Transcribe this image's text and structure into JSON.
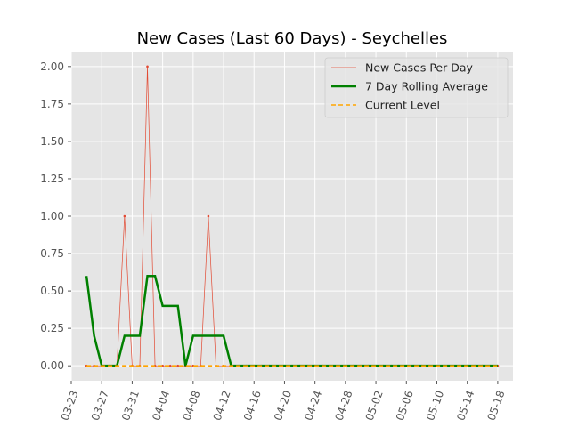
{
  "chart_data": {
    "type": "line",
    "title": "New Cases (Last 60 Days) - Seychelles",
    "xlabel": "",
    "ylabel": "",
    "x_start_date": "2020-03-25",
    "x_tick_labels": [
      "03-23",
      "03-27",
      "03-31",
      "04-04",
      "04-08",
      "04-12",
      "04-16",
      "04-20",
      "04-24",
      "04-28",
      "05-02",
      "05-06",
      "05-10",
      "05-14",
      "05-18"
    ],
    "y_tick_labels": [
      "0.00",
      "0.25",
      "0.50",
      "0.75",
      "1.00",
      "1.25",
      "1.50",
      "1.75",
      "2.00"
    ],
    "y_ticks": [
      0,
      0.25,
      0.5,
      0.75,
      1.0,
      1.25,
      1.5,
      1.75,
      2.0
    ],
    "ylim": [
      -0.1,
      2.1
    ],
    "xlim_days": [
      -2,
      56
    ],
    "grid": true,
    "legend_position": "top-right",
    "series": [
      {
        "name": "New Cases Per Day",
        "color": "#e24a33",
        "style": "thin-line-markers",
        "x_days": [
          0,
          1,
          2,
          3,
          4,
          5,
          6,
          7,
          8,
          9,
          10,
          11,
          12,
          13,
          14,
          15,
          16,
          17,
          18,
          19,
          20,
          21,
          22,
          23,
          24,
          25,
          26,
          27,
          28,
          29,
          30,
          31,
          32,
          33,
          34,
          35,
          36,
          37,
          38,
          39,
          40,
          41,
          42,
          43,
          44,
          45,
          46,
          47,
          48,
          49,
          50,
          51,
          52,
          53,
          54
        ],
        "values": [
          0,
          0,
          0,
          0,
          0,
          1,
          0,
          0,
          2,
          0,
          0,
          0,
          0,
          0,
          0,
          0,
          1,
          0,
          0,
          0,
          0,
          0,
          0,
          0,
          0,
          0,
          0,
          0,
          0,
          0,
          0,
          0,
          0,
          0,
          0,
          0,
          0,
          0,
          0,
          0,
          0,
          0,
          0,
          0,
          0,
          0,
          0,
          0,
          0,
          0,
          0,
          0,
          0,
          0,
          0
        ]
      },
      {
        "name": "7 Day Rolling Average",
        "color": "#008000",
        "style": "thick-line",
        "x_days": [
          0,
          1,
          2,
          3,
          4,
          5,
          6,
          7,
          8,
          9,
          10,
          11,
          12,
          13,
          14,
          15,
          16,
          17,
          18,
          19,
          20,
          21,
          22,
          23,
          24,
          25,
          26,
          27,
          28,
          29,
          30,
          31,
          32,
          33,
          34,
          35,
          36,
          37,
          38,
          39,
          40,
          41,
          42,
          43,
          44,
          45,
          46,
          47,
          48,
          49,
          50,
          51,
          52,
          53,
          54
        ],
        "values": [
          0.6,
          0.2,
          0,
          0,
          0,
          0.2,
          0.2,
          0.2,
          0.6,
          0.6,
          0.4,
          0.4,
          0.4,
          0,
          0.2,
          0.2,
          0.2,
          0.2,
          0.2,
          0,
          0,
          0,
          0,
          0,
          0,
          0,
          0,
          0,
          0,
          0,
          0,
          0,
          0,
          0,
          0,
          0,
          0,
          0,
          0,
          0,
          0,
          0,
          0,
          0,
          0,
          0,
          0,
          0,
          0,
          0,
          0,
          0,
          0,
          0,
          0
        ]
      },
      {
        "name": "Current Level",
        "color": "#ffa500",
        "style": "dashed",
        "x_days": [
          0,
          54
        ],
        "values": [
          0,
          0
        ]
      }
    ]
  }
}
